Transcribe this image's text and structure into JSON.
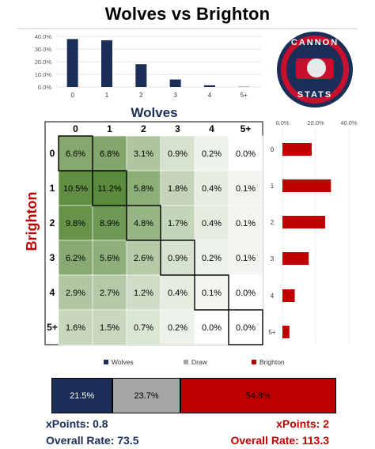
{
  "title": "Wolves vs Brighton",
  "home_team": "Wolves",
  "away_team": "Brighton",
  "logo": {
    "top_word": "CANNON",
    "bottom_word": "STATS"
  },
  "colors": {
    "home": "#1a2e57",
    "draw": "#a6a6a6",
    "away": "#c00000",
    "grid_dark": "#5a8a3c",
    "grid_light": "#ffffff"
  },
  "chart_data": [
    {
      "type": "bar",
      "name": "home-goals-distribution",
      "categories": [
        "0",
        "1",
        "2",
        "3",
        "4",
        "5+"
      ],
      "values": [
        37.9,
        36.9,
        18.0,
        5.9,
        1.3,
        0.2
      ],
      "ylim": [
        0,
        40
      ],
      "yticks": [
        "0.0%",
        "10.0%",
        "20.0%",
        "30.0%",
        "40.0%"
      ],
      "color": "#1a2e57"
    },
    {
      "type": "bar",
      "orientation": "horizontal",
      "name": "away-goals-distribution",
      "categories": [
        "0",
        "1",
        "2",
        "3",
        "4",
        "5+"
      ],
      "values": [
        17.6,
        29.2,
        25.7,
        15.8,
        7.4,
        4.2
      ],
      "xlim": [
        0,
        40
      ],
      "xticks": [
        "0.0%",
        "20.0%",
        "40.0%"
      ],
      "color": "#c00000"
    },
    {
      "type": "heatmap",
      "name": "scoreline-probability-matrix",
      "x_labels": [
        "0",
        "1",
        "2",
        "3",
        "4",
        "5+"
      ],
      "y_labels": [
        "0",
        "1",
        "2",
        "3",
        "4",
        "5+"
      ],
      "values": [
        [
          "6.6%",
          "6.8%",
          "3.1%",
          "0.9%",
          "0.2%",
          "0.0%"
        ],
        [
          "10.5%",
          "11.2%",
          "5.8%",
          "1.8%",
          "0.4%",
          "0.1%"
        ],
        [
          "9.8%",
          "8.9%",
          "4.8%",
          "1.7%",
          "0.4%",
          "0.1%"
        ],
        [
          "6.2%",
          "5.6%",
          "2.6%",
          "0.9%",
          "0.2%",
          "0.1%"
        ],
        [
          "2.9%",
          "2.7%",
          "1.2%",
          "0.4%",
          "0.1%",
          "0.0%"
        ],
        [
          "1.6%",
          "1.5%",
          "0.7%",
          "0.2%",
          "0.0%",
          "0.0%"
        ]
      ]
    },
    {
      "type": "bar",
      "name": "match-outcome",
      "stacked": true,
      "legend": [
        "Wolves",
        "Draw",
        "Brighton"
      ],
      "values": [
        21.5,
        23.7,
        54.8
      ],
      "labels": [
        "21.5%",
        "23.7%",
        "54.8%"
      ]
    }
  ],
  "footer": {
    "home_xpoints": "xPoints: 0.8",
    "home_rate": "Overall Rate: 73.5",
    "away_xpoints": "xPoints: 2",
    "away_rate": "Overall Rate: 113.3"
  }
}
